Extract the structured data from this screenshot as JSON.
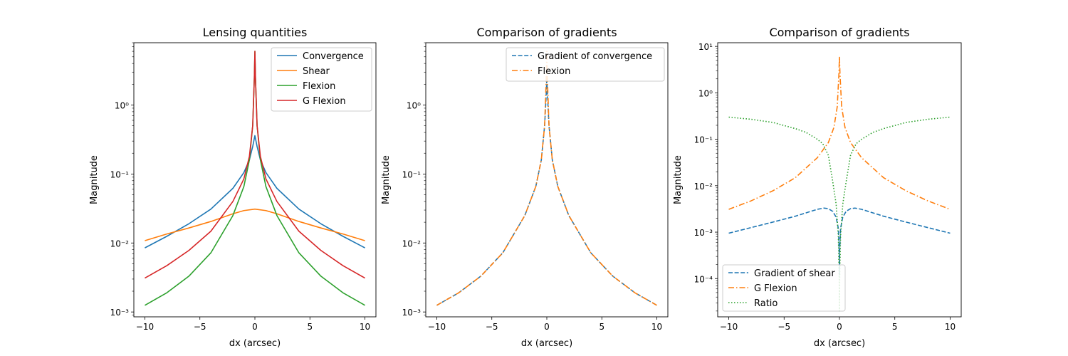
{
  "chart_data": [
    {
      "type": "line",
      "title": "Lensing quantities",
      "xlabel": "dx (arcsec)",
      "ylabel": "Magnitude",
      "yscale": "log",
      "xlim": [
        -11,
        11
      ],
      "ylim": [
        0.00085,
        8
      ],
      "xticks": [
        -10,
        -5,
        0,
        5,
        10
      ],
      "yticks": [
        0.001,
        0.01,
        0.1,
        1
      ],
      "legend_loc": "upper right",
      "series": [
        {
          "name": "Convergence",
          "color": "#1f77b4",
          "dash": "solid",
          "x": [
            -10,
            -8,
            -6,
            -4,
            -2,
            -1,
            -0.5,
            -0.2,
            0,
            0.2,
            0.5,
            1,
            2,
            4,
            6,
            8,
            10
          ],
          "y": [
            0.0085,
            0.0125,
            0.019,
            0.031,
            0.062,
            0.105,
            0.16,
            0.25,
            0.36,
            0.25,
            0.16,
            0.105,
            0.062,
            0.031,
            0.019,
            0.0125,
            0.0085
          ]
        },
        {
          "name": "Shear",
          "color": "#ff7f0e",
          "dash": "solid",
          "x": [
            -10,
            -8,
            -6,
            -4,
            -2,
            -1,
            0,
            1,
            2,
            4,
            6,
            8,
            10
          ],
          "y": [
            0.0108,
            0.0135,
            0.0165,
            0.0205,
            0.0265,
            0.0295,
            0.031,
            0.0295,
            0.0265,
            0.0205,
            0.0165,
            0.0135,
            0.0108
          ]
        },
        {
          "name": "Flexion",
          "color": "#2ca02c",
          "dash": "solid",
          "x": [
            -10,
            -8,
            -6,
            -4,
            -2,
            -1,
            -0.5,
            -0.2,
            -0.05,
            0,
            0.05,
            0.2,
            0.5,
            1,
            2,
            4,
            6,
            8,
            10
          ],
          "y": [
            0.00125,
            0.0019,
            0.0033,
            0.0072,
            0.025,
            0.066,
            0.16,
            0.5,
            2.5,
            6.0,
            2.5,
            0.5,
            0.16,
            0.066,
            0.025,
            0.0072,
            0.0033,
            0.0019,
            0.00125
          ]
        },
        {
          "name": "G Flexion",
          "color": "#d62728",
          "dash": "solid",
          "x": [
            -10,
            -8,
            -6,
            -4,
            -2,
            -1,
            -0.5,
            -0.2,
            -0.05,
            0,
            0.05,
            0.2,
            0.5,
            1,
            2,
            4,
            6,
            8,
            10
          ],
          "y": [
            0.0031,
            0.0047,
            0.0078,
            0.0148,
            0.04,
            0.085,
            0.18,
            0.5,
            2.5,
            6.0,
            2.5,
            0.5,
            0.18,
            0.085,
            0.04,
            0.0148,
            0.0078,
            0.0047,
            0.0031
          ]
        }
      ]
    },
    {
      "type": "line",
      "title": "Comparison of gradients",
      "xlabel": "dx (arcsec)",
      "ylabel": "Magnitude",
      "yscale": "log",
      "xlim": [
        -11,
        11
      ],
      "ylim": [
        0.00085,
        8
      ],
      "xticks": [
        -10,
        -5,
        0,
        5,
        10
      ],
      "yticks": [
        0.001,
        0.01,
        0.1,
        1
      ],
      "legend_loc": "upper right",
      "series": [
        {
          "name": "Gradient of convergence",
          "color": "#1f77b4",
          "dash": "dashed",
          "x": [
            -10,
            -8,
            -6,
            -4,
            -2,
            -1,
            -0.5,
            -0.2,
            -0.05,
            0,
            0.05,
            0.2,
            0.5,
            1,
            2,
            4,
            6,
            8,
            10
          ],
          "y": [
            0.00125,
            0.0019,
            0.0033,
            0.0072,
            0.025,
            0.066,
            0.16,
            0.5,
            1.5,
            2.5,
            1.5,
            0.5,
            0.16,
            0.066,
            0.025,
            0.0072,
            0.0033,
            0.0019,
            0.00125
          ]
        },
        {
          "name": "Flexion",
          "color": "#ff7f0e",
          "dash": "dashdot",
          "x": [
            -10,
            -8,
            -6,
            -4,
            -2,
            -1,
            -0.5,
            -0.2,
            -0.05,
            0,
            0.05,
            0.2,
            0.5,
            1,
            2,
            4,
            6,
            8,
            10
          ],
          "y": [
            0.00125,
            0.0019,
            0.0033,
            0.0072,
            0.025,
            0.066,
            0.16,
            0.5,
            2.5,
            6.0,
            2.5,
            0.5,
            0.16,
            0.066,
            0.025,
            0.0072,
            0.0033,
            0.0019,
            0.00125
          ]
        }
      ]
    },
    {
      "type": "line",
      "title": "Comparison of gradients",
      "xlabel": "dx (arcsec)",
      "ylabel": "Magnitude",
      "yscale": "log",
      "xlim": [
        -11,
        11
      ],
      "ylim": [
        1.5e-05,
        12
      ],
      "xticks": [
        -10,
        -5,
        0,
        5,
        10
      ],
      "yticks": [
        0.0001,
        0.001,
        0.01,
        0.1,
        1,
        10
      ],
      "legend_loc": "lower left",
      "series": [
        {
          "name": "Gradient of shear",
          "color": "#1f77b4",
          "dash": "dashed",
          "x": [
            -10,
            -8,
            -6,
            -4,
            -2,
            -1.4,
            -1,
            -0.6,
            -0.3,
            -0.1,
            -0.02,
            0,
            0.02,
            0.1,
            0.3,
            0.6,
            1,
            1.4,
            2,
            4,
            6,
            8,
            10
          ],
          "y": [
            0.00095,
            0.00125,
            0.00165,
            0.0022,
            0.0031,
            0.0033,
            0.0032,
            0.0028,
            0.0021,
            0.0012,
            0.0004,
            0.00012,
            0.0004,
            0.0012,
            0.0021,
            0.0028,
            0.0032,
            0.0033,
            0.0031,
            0.0022,
            0.00165,
            0.00125,
            0.00095
          ]
        },
        {
          "name": "G Flexion",
          "color": "#ff7f0e",
          "dash": "dashdot",
          "x": [
            -10,
            -8,
            -6,
            -4,
            -2,
            -1,
            -0.5,
            -0.2,
            -0.05,
            0,
            0.05,
            0.2,
            0.5,
            1,
            2,
            4,
            6,
            8,
            10
          ],
          "y": [
            0.0031,
            0.0047,
            0.0078,
            0.0148,
            0.04,
            0.085,
            0.18,
            0.5,
            2.5,
            6.0,
            2.5,
            0.5,
            0.18,
            0.085,
            0.04,
            0.0148,
            0.0078,
            0.0047,
            0.0031
          ]
        },
        {
          "name": "Ratio",
          "color": "#2ca02c",
          "dash": "dotted",
          "x": [
            -10,
            -8,
            -6,
            -4,
            -3,
            -2,
            -1.5,
            -1,
            -0.6,
            -0.3,
            -0.1,
            -0.02,
            0,
            0.02,
            0.1,
            0.3,
            0.6,
            1,
            1.5,
            2,
            3,
            4,
            6,
            8,
            10
          ],
          "y": [
            0.3,
            0.27,
            0.23,
            0.17,
            0.14,
            0.1,
            0.08,
            0.045,
            0.012,
            0.004,
            0.0008,
            0.0001,
            2e-05,
            0.0001,
            0.0008,
            0.004,
            0.012,
            0.045,
            0.08,
            0.1,
            0.14,
            0.17,
            0.23,
            0.27,
            0.3
          ]
        }
      ]
    }
  ]
}
